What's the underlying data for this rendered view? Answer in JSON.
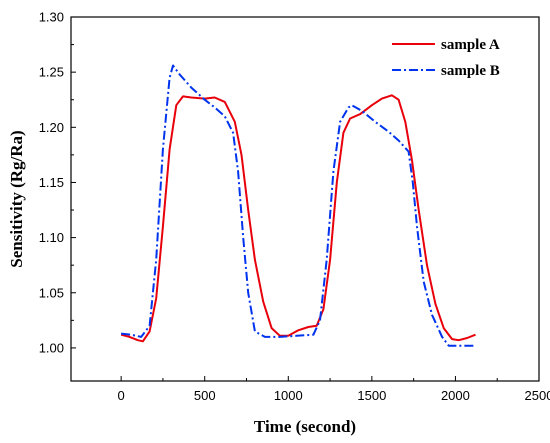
{
  "chart_data": {
    "type": "line",
    "title": "",
    "xlabel": "Time (second)",
    "ylabel": "Sensitivity (Rg/Ra)",
    "xlim": [
      -300,
      2500
    ],
    "ylim": [
      0.97,
      1.3
    ],
    "x_ticks": [
      0,
      500,
      1000,
      1500,
      2000,
      2500
    ],
    "x_tick_labels": [
      "0",
      "500",
      "1000",
      "1500",
      "2000",
      "2500"
    ],
    "y_ticks": [
      1.0,
      1.05,
      1.1,
      1.15,
      1.2,
      1.25,
      1.3
    ],
    "y_tick_labels": [
      "1.00",
      "1.05",
      "1.10",
      "1.15",
      "1.20",
      "1.25",
      "1.30"
    ],
    "grid": false,
    "legend": {
      "placement": "top-right"
    },
    "series": [
      {
        "name": "sample A",
        "color": "#e8000b",
        "dash": "solid",
        "points": [
          [
            0,
            1.012
          ],
          [
            50,
            1.01
          ],
          [
            100,
            1.007
          ],
          [
            130,
            1.006
          ],
          [
            170,
            1.015
          ],
          [
            210,
            1.045
          ],
          [
            250,
            1.11
          ],
          [
            290,
            1.18
          ],
          [
            330,
            1.22
          ],
          [
            370,
            1.228
          ],
          [
            420,
            1.227
          ],
          [
            500,
            1.226
          ],
          [
            560,
            1.227
          ],
          [
            620,
            1.223
          ],
          [
            680,
            1.205
          ],
          [
            720,
            1.175
          ],
          [
            760,
            1.125
          ],
          [
            800,
            1.08
          ],
          [
            850,
            1.042
          ],
          [
            900,
            1.018
          ],
          [
            950,
            1.011
          ],
          [
            1000,
            1.011
          ],
          [
            1060,
            1.016
          ],
          [
            1120,
            1.019
          ],
          [
            1170,
            1.02
          ],
          [
            1210,
            1.035
          ],
          [
            1250,
            1.08
          ],
          [
            1290,
            1.15
          ],
          [
            1330,
            1.195
          ],
          [
            1370,
            1.208
          ],
          [
            1430,
            1.212
          ],
          [
            1500,
            1.22
          ],
          [
            1560,
            1.226
          ],
          [
            1620,
            1.229
          ],
          [
            1660,
            1.225
          ],
          [
            1700,
            1.205
          ],
          [
            1740,
            1.17
          ],
          [
            1780,
            1.125
          ],
          [
            1830,
            1.075
          ],
          [
            1880,
            1.04
          ],
          [
            1930,
            1.018
          ],
          [
            1980,
            1.008
          ],
          [
            2020,
            1.007
          ],
          [
            2070,
            1.009
          ],
          [
            2120,
            1.012
          ]
        ]
      },
      {
        "name": "sample B",
        "color": "#0033ee",
        "dash": "dashdot",
        "points": [
          [
            0,
            1.013
          ],
          [
            60,
            1.012
          ],
          [
            120,
            1.01
          ],
          [
            170,
            1.02
          ],
          [
            210,
            1.08
          ],
          [
            250,
            1.18
          ],
          [
            290,
            1.245
          ],
          [
            310,
            1.256
          ],
          [
            350,
            1.248
          ],
          [
            420,
            1.236
          ],
          [
            500,
            1.225
          ],
          [
            560,
            1.218
          ],
          [
            620,
            1.21
          ],
          [
            670,
            1.195
          ],
          [
            700,
            1.16
          ],
          [
            730,
            1.1
          ],
          [
            760,
            1.05
          ],
          [
            800,
            1.015
          ],
          [
            860,
            1.01
          ],
          [
            950,
            1.01
          ],
          [
            1050,
            1.011
          ],
          [
            1150,
            1.012
          ],
          [
            1190,
            1.025
          ],
          [
            1230,
            1.08
          ],
          [
            1270,
            1.16
          ],
          [
            1310,
            1.205
          ],
          [
            1360,
            1.218
          ],
          [
            1380,
            1.22
          ],
          [
            1440,
            1.215
          ],
          [
            1520,
            1.205
          ],
          [
            1600,
            1.196
          ],
          [
            1660,
            1.188
          ],
          [
            1720,
            1.178
          ],
          [
            1745,
            1.15
          ],
          [
            1770,
            1.11
          ],
          [
            1810,
            1.06
          ],
          [
            1860,
            1.03
          ],
          [
            1920,
            1.01
          ],
          [
            1960,
            1.002
          ],
          [
            2050,
            1.002
          ],
          [
            2120,
            1.002
          ]
        ]
      }
    ]
  }
}
